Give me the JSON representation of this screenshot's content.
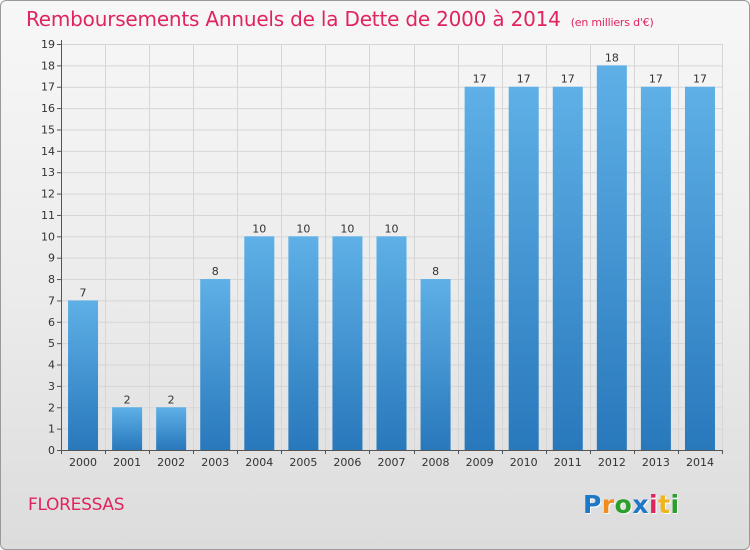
{
  "title": "Remboursements Annuels de la Dette de 2000 à 2014",
  "unit": "(en milliers d'€)",
  "commune": "FLORESSAS",
  "logo": {
    "letters": [
      "P",
      "r",
      "o",
      "x",
      "i",
      "t",
      "i"
    ],
    "colors": [
      "#1e78c8",
      "#f08c1e",
      "#2aa02a",
      "#1e78c8",
      "#e0245e",
      "#f0b41e",
      "#2aa02a"
    ]
  },
  "colors": {
    "title": "#e0245e",
    "bar_light": "#5dade2",
    "bar_dark": "#2a7fc0"
  },
  "chart_data": {
    "type": "bar",
    "title": "Remboursements Annuels de la Dette de 2000 à 2014",
    "categories": [
      "2000",
      "2001",
      "2002",
      "2003",
      "2004",
      "2005",
      "2006",
      "2007",
      "2008",
      "2009",
      "2010",
      "2011",
      "2012",
      "2013",
      "2014"
    ],
    "values": [
      7,
      2,
      2,
      8,
      10,
      10,
      10,
      10,
      8,
      17,
      17,
      17,
      18,
      17,
      17
    ],
    "ylim": [
      0,
      19
    ],
    "yticks": [
      0,
      1,
      2,
      3,
      4,
      5,
      6,
      7,
      8,
      9,
      10,
      11,
      12,
      13,
      14,
      15,
      16,
      17,
      18,
      19
    ],
    "grid": true,
    "xlabel": "",
    "ylabel": ""
  }
}
